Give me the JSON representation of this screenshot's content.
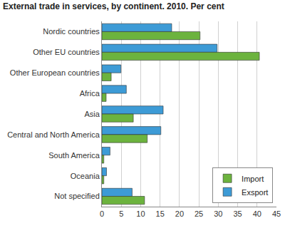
{
  "chart_data": {
    "type": "bar",
    "orientation": "horizontal",
    "title": "External trade in services, by continent. 2010. Per cent",
    "categories": [
      "Nordic countries",
      "Other EU countries",
      "Other European countries",
      "Africa",
      "Asia",
      "Central and North America",
      "South America",
      "Oceania",
      "Not specified"
    ],
    "series": [
      {
        "name": "Exsport",
        "color": "#3d9bd6",
        "values": [
          18.0,
          29.7,
          4.9,
          6.3,
          15.8,
          15.2,
          2.1,
          1.2,
          7.8
        ]
      },
      {
        "name": "Import",
        "color": "#6cb33e",
        "values": [
          25.3,
          40.6,
          2.4,
          1.1,
          8.1,
          11.7,
          0.5,
          0.5,
          11.0
        ]
      }
    ],
    "xlim": [
      0,
      45
    ],
    "xticks": [
      0,
      5,
      10,
      15,
      20,
      25,
      30,
      35,
      40,
      45
    ],
    "grid": true,
    "legend": "bottom right"
  }
}
